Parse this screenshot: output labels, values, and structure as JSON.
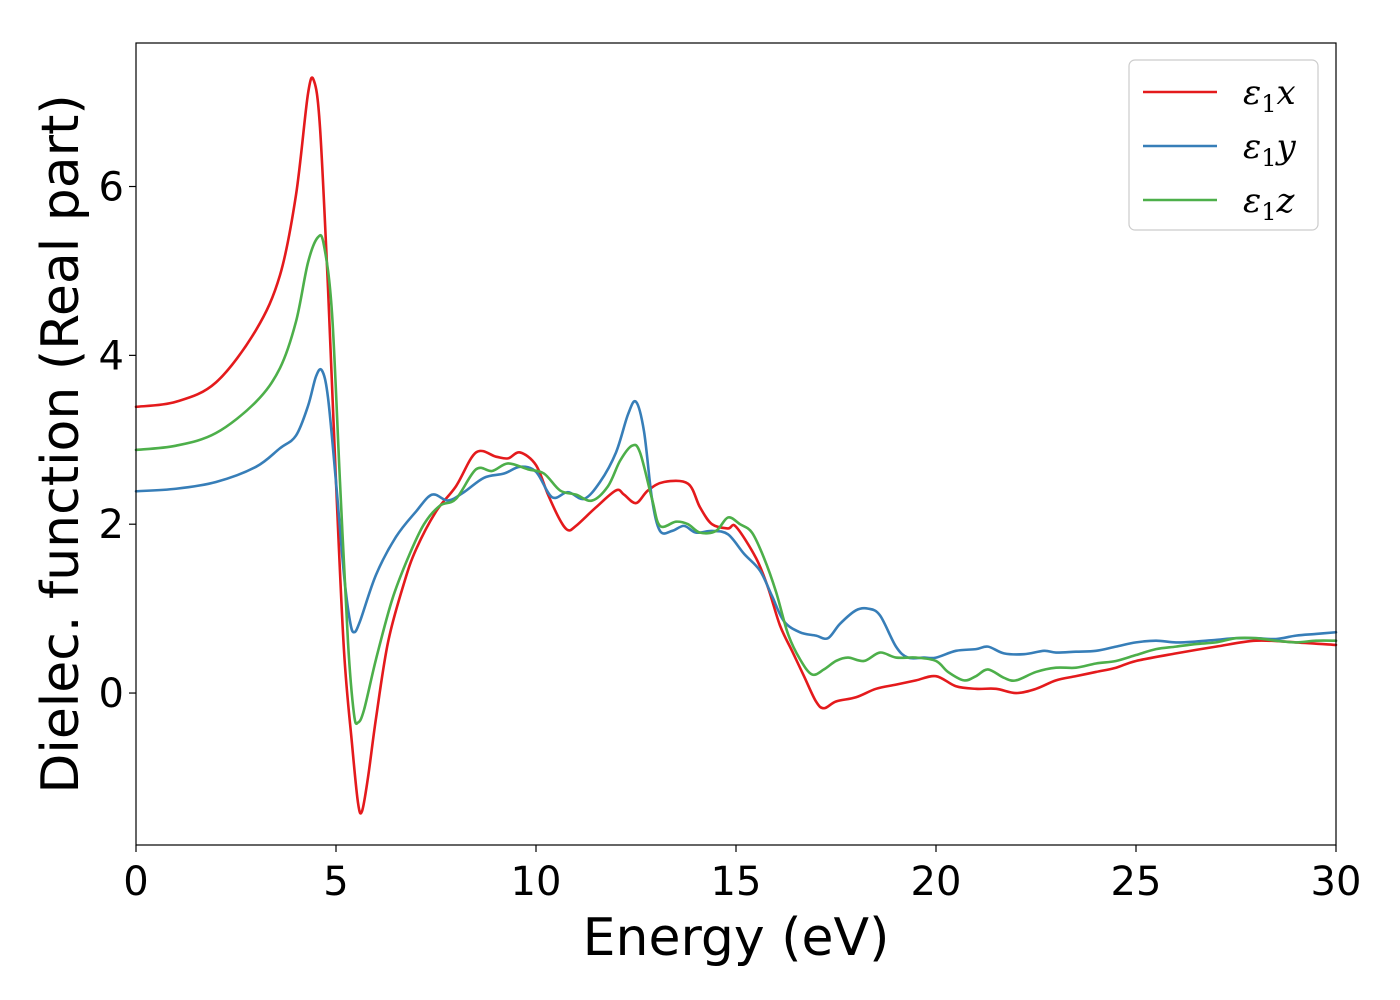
{
  "chart_data": {
    "type": "line",
    "title": "",
    "xlabel": "Energy (eV)",
    "ylabel": "Dielec. function (Real part)",
    "xlim": [
      0,
      30
    ],
    "ylim": [
      -1.8,
      7.7
    ],
    "xticks": [
      0,
      5,
      10,
      15,
      20,
      25,
      30
    ],
    "yticks": [
      0,
      2,
      4,
      6
    ],
    "grid": false,
    "legend": "top-right",
    "series": [
      {
        "name": "ε₁x",
        "legend_main": "ε",
        "legend_sub": "1",
        "legend_axis": "x",
        "color": "#e41a1c",
        "points": [
          [
            0,
            3.39
          ],
          [
            1,
            3.45
          ],
          [
            2,
            3.68
          ],
          [
            3,
            4.3
          ],
          [
            3.6,
            4.95
          ],
          [
            4,
            5.9
          ],
          [
            4.3,
            7.1
          ],
          [
            4.45,
            7.25
          ],
          [
            4.6,
            6.7
          ],
          [
            4.8,
            4.8
          ],
          [
            5,
            2.5
          ],
          [
            5.2,
            0.5
          ],
          [
            5.4,
            -0.6
          ],
          [
            5.55,
            -1.3
          ],
          [
            5.65,
            -1.4
          ],
          [
            5.8,
            -1.0
          ],
          [
            6,
            -0.3
          ],
          [
            6.3,
            0.6
          ],
          [
            6.7,
            1.3
          ],
          [
            7,
            1.7
          ],
          [
            7.5,
            2.15
          ],
          [
            8,
            2.45
          ],
          [
            8.5,
            2.85
          ],
          [
            9,
            2.8
          ],
          [
            9.3,
            2.78
          ],
          [
            9.6,
            2.85
          ],
          [
            10,
            2.7
          ],
          [
            10.3,
            2.35
          ],
          [
            10.6,
            2.05
          ],
          [
            10.8,
            1.93
          ],
          [
            11,
            1.98
          ],
          [
            11.5,
            2.2
          ],
          [
            12,
            2.4
          ],
          [
            12.2,
            2.35
          ],
          [
            12.5,
            2.25
          ],
          [
            12.8,
            2.4
          ],
          [
            13.2,
            2.5
          ],
          [
            13.8,
            2.48
          ],
          [
            14.1,
            2.2
          ],
          [
            14.4,
            2.0
          ],
          [
            14.8,
            1.95
          ],
          [
            15,
            1.97
          ],
          [
            15.5,
            1.6
          ],
          [
            15.8,
            1.25
          ],
          [
            16.1,
            0.8
          ],
          [
            16.4,
            0.5
          ],
          [
            16.7,
            0.2
          ],
          [
            17,
            -0.1
          ],
          [
            17.2,
            -0.18
          ],
          [
            17.5,
            -0.1
          ],
          [
            18,
            -0.05
          ],
          [
            18.5,
            0.05
          ],
          [
            19,
            0.1
          ],
          [
            19.5,
            0.15
          ],
          [
            20,
            0.2
          ],
          [
            20.5,
            0.08
          ],
          [
            21,
            0.05
          ],
          [
            21.5,
            0.05
          ],
          [
            22,
            0.0
          ],
          [
            22.5,
            0.05
          ],
          [
            23,
            0.15
          ],
          [
            23.5,
            0.2
          ],
          [
            24,
            0.25
          ],
          [
            24.5,
            0.3
          ],
          [
            25,
            0.38
          ],
          [
            26,
            0.47
          ],
          [
            27,
            0.55
          ],
          [
            28,
            0.62
          ],
          [
            29,
            0.6
          ],
          [
            30,
            0.57
          ]
        ]
      },
      {
        "name": "ε₁y",
        "legend_main": "ε",
        "legend_sub": "1",
        "legend_axis": "y",
        "color": "#377eb8",
        "points": [
          [
            0,
            2.39
          ],
          [
            1,
            2.42
          ],
          [
            2,
            2.5
          ],
          [
            3,
            2.68
          ],
          [
            3.6,
            2.9
          ],
          [
            4,
            3.05
          ],
          [
            4.3,
            3.4
          ],
          [
            4.5,
            3.75
          ],
          [
            4.65,
            3.82
          ],
          [
            4.8,
            3.5
          ],
          [
            5,
            2.5
          ],
          [
            5.2,
            1.4
          ],
          [
            5.35,
            0.85
          ],
          [
            5.45,
            0.72
          ],
          [
            5.6,
            0.85
          ],
          [
            6,
            1.4
          ],
          [
            6.5,
            1.85
          ],
          [
            7,
            2.15
          ],
          [
            7.4,
            2.35
          ],
          [
            7.8,
            2.28
          ],
          [
            8.2,
            2.38
          ],
          [
            8.7,
            2.55
          ],
          [
            9.2,
            2.6
          ],
          [
            9.6,
            2.68
          ],
          [
            10,
            2.62
          ],
          [
            10.4,
            2.32
          ],
          [
            10.8,
            2.38
          ],
          [
            11.2,
            2.3
          ],
          [
            11.6,
            2.5
          ],
          [
            12,
            2.85
          ],
          [
            12.3,
            3.3
          ],
          [
            12.5,
            3.45
          ],
          [
            12.7,
            3.1
          ],
          [
            12.9,
            2.3
          ],
          [
            13.1,
            1.92
          ],
          [
            13.4,
            1.92
          ],
          [
            13.7,
            1.98
          ],
          [
            14,
            1.9
          ],
          [
            14.4,
            1.92
          ],
          [
            14.8,
            1.88
          ],
          [
            15.2,
            1.65
          ],
          [
            15.6,
            1.45
          ],
          [
            15.9,
            1.15
          ],
          [
            16.2,
            0.85
          ],
          [
            16.6,
            0.72
          ],
          [
            17,
            0.68
          ],
          [
            17.3,
            0.65
          ],
          [
            17.6,
            0.82
          ],
          [
            18,
            0.98
          ],
          [
            18.3,
            1.0
          ],
          [
            18.6,
            0.92
          ],
          [
            19,
            0.55
          ],
          [
            19.3,
            0.42
          ],
          [
            19.7,
            0.42
          ],
          [
            20,
            0.42
          ],
          [
            20.5,
            0.5
          ],
          [
            21,
            0.52
          ],
          [
            21.3,
            0.55
          ],
          [
            21.7,
            0.47
          ],
          [
            22.2,
            0.46
          ],
          [
            22.7,
            0.5
          ],
          [
            23,
            0.48
          ],
          [
            23.5,
            0.49
          ],
          [
            24,
            0.5
          ],
          [
            24.5,
            0.55
          ],
          [
            25,
            0.6
          ],
          [
            25.5,
            0.62
          ],
          [
            26,
            0.6
          ],
          [
            26.5,
            0.61
          ],
          [
            27,
            0.63
          ],
          [
            27.5,
            0.65
          ],
          [
            28,
            0.65
          ],
          [
            28.5,
            0.64
          ],
          [
            29,
            0.68
          ],
          [
            29.5,
            0.7
          ],
          [
            30,
            0.72
          ]
        ]
      },
      {
        "name": "ε₁z",
        "legend_main": "ε",
        "legend_sub": "1",
        "legend_axis": "z",
        "color": "#4daf4a",
        "points": [
          [
            0,
            2.88
          ],
          [
            1,
            2.93
          ],
          [
            2,
            3.08
          ],
          [
            3,
            3.45
          ],
          [
            3.6,
            3.85
          ],
          [
            4,
            4.4
          ],
          [
            4.3,
            5.1
          ],
          [
            4.55,
            5.4
          ],
          [
            4.7,
            5.3
          ],
          [
            4.9,
            4.5
          ],
          [
            5.1,
            2.5
          ],
          [
            5.3,
            0.6
          ],
          [
            5.45,
            -0.25
          ],
          [
            5.55,
            -0.35
          ],
          [
            5.7,
            -0.2
          ],
          [
            6,
            0.4
          ],
          [
            6.4,
            1.1
          ],
          [
            6.8,
            1.6
          ],
          [
            7.2,
            2.0
          ],
          [
            7.6,
            2.22
          ],
          [
            8,
            2.3
          ],
          [
            8.5,
            2.65
          ],
          [
            8.9,
            2.63
          ],
          [
            9.3,
            2.72
          ],
          [
            9.8,
            2.65
          ],
          [
            10.2,
            2.6
          ],
          [
            10.6,
            2.4
          ],
          [
            11,
            2.35
          ],
          [
            11.4,
            2.28
          ],
          [
            11.8,
            2.45
          ],
          [
            12.1,
            2.75
          ],
          [
            12.4,
            2.93
          ],
          [
            12.6,
            2.85
          ],
          [
            12.9,
            2.3
          ],
          [
            13.1,
            1.98
          ],
          [
            13.5,
            2.03
          ],
          [
            13.8,
            2.0
          ],
          [
            14.1,
            1.9
          ],
          [
            14.5,
            1.92
          ],
          [
            14.8,
            2.08
          ],
          [
            15.1,
            2.0
          ],
          [
            15.4,
            1.9
          ],
          [
            15.7,
            1.6
          ],
          [
            16,
            1.2
          ],
          [
            16.3,
            0.7
          ],
          [
            16.6,
            0.4
          ],
          [
            16.9,
            0.22
          ],
          [
            17.2,
            0.28
          ],
          [
            17.5,
            0.38
          ],
          [
            17.8,
            0.42
          ],
          [
            18.2,
            0.38
          ],
          [
            18.6,
            0.48
          ],
          [
            19,
            0.42
          ],
          [
            19.5,
            0.42
          ],
          [
            20,
            0.38
          ],
          [
            20.3,
            0.25
          ],
          [
            20.7,
            0.15
          ],
          [
            21,
            0.2
          ],
          [
            21.3,
            0.28
          ],
          [
            21.7,
            0.18
          ],
          [
            22,
            0.15
          ],
          [
            22.5,
            0.25
          ],
          [
            23,
            0.3
          ],
          [
            23.5,
            0.3
          ],
          [
            24,
            0.35
          ],
          [
            24.5,
            0.38
          ],
          [
            25,
            0.45
          ],
          [
            25.5,
            0.52
          ],
          [
            26,
            0.55
          ],
          [
            26.5,
            0.58
          ],
          [
            27,
            0.6
          ],
          [
            27.5,
            0.65
          ],
          [
            28,
            0.65
          ],
          [
            28.5,
            0.62
          ],
          [
            29,
            0.6
          ],
          [
            29.5,
            0.62
          ],
          [
            30,
            0.62
          ]
        ]
      }
    ]
  }
}
